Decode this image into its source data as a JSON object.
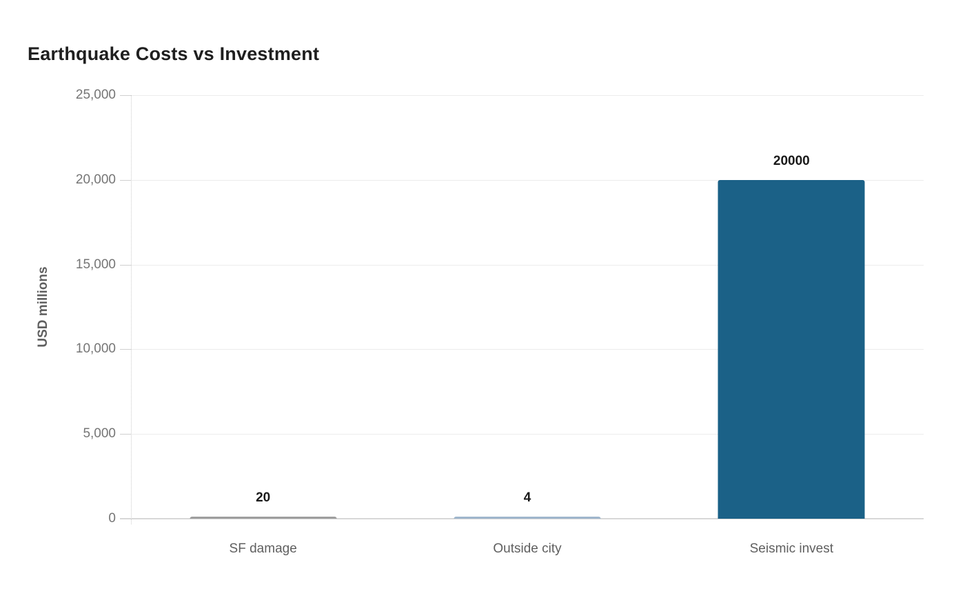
{
  "title": "Earthquake Costs vs Investment",
  "y_axis": {
    "label": "USD millions",
    "tick_labels": [
      "25,000",
      "20,000",
      "15,000",
      "10,000",
      "5,000",
      "0"
    ]
  },
  "chart_data": {
    "type": "bar",
    "title": "Earthquake Costs vs Investment",
    "categories": [
      "SF damage",
      "Outside city",
      "Seismic invest"
    ],
    "values": [
      20,
      4,
      20000
    ],
    "value_labels": [
      "20",
      "4",
      "20000"
    ],
    "xlabel": "",
    "ylabel": "USD millions",
    "ylim": [
      0,
      25000
    ],
    "ytick_interval": 5000,
    "grid": true,
    "legend": false,
    "bar_colors": [
      "#9e9e9e",
      "#9fb6cc",
      "#1b6187"
    ],
    "background_color": "#ffffff",
    "gridline_color": "#ececec",
    "axis_text_color": "#757575",
    "label_text_color": "#1a1a1a"
  }
}
